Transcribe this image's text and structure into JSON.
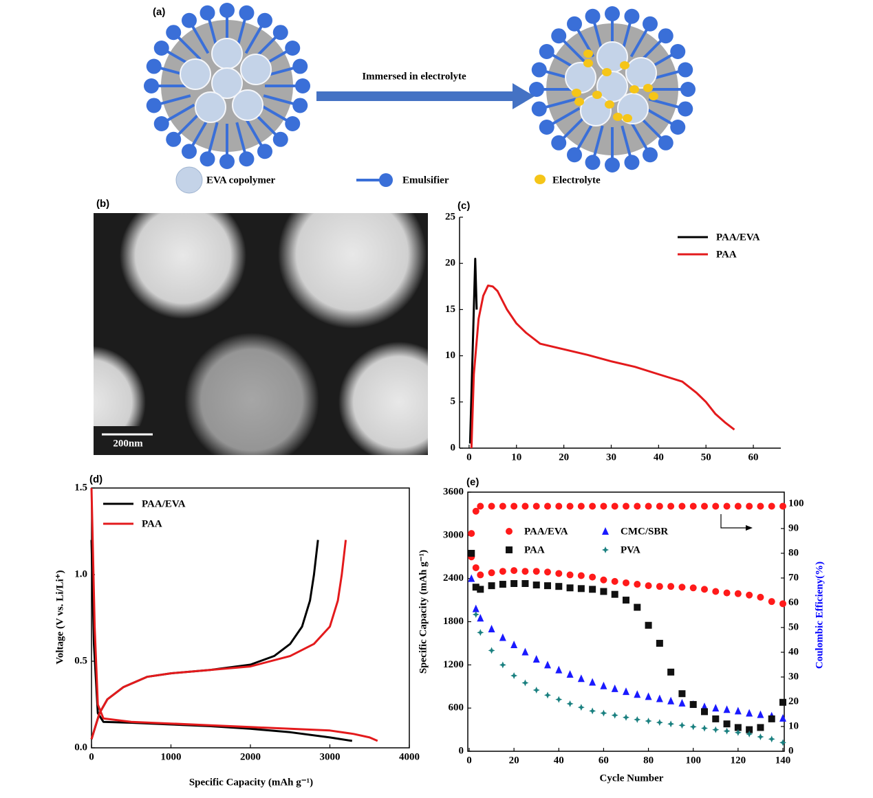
{
  "diagram": {
    "label": "(a)",
    "arrow_text": "Immersed in electrolyte",
    "legend": [
      "EVA copolymer",
      "Emulsifier",
      "Electrolyte"
    ]
  },
  "micrograph": {
    "label": "(b)",
    "scale_bar": "200nm"
  },
  "chart_data": [
    {
      "type": "line",
      "label": "(c)",
      "xlim": [
        -1,
        65.8
      ],
      "ylim": [
        0,
        25
      ],
      "xticks": [
        0,
        10,
        20,
        30,
        40,
        50,
        60
      ],
      "yticks": [
        0,
        5,
        10,
        15,
        20,
        25
      ],
      "legend": "upper right",
      "series": [
        {
          "name": "PAA/EVA",
          "color": "#000000",
          "x": [
            0.2,
            1.3,
            1.6
          ],
          "values": [
            0.5,
            20.5,
            15
          ]
        },
        {
          "name": "PAA",
          "color": "#e31a1c",
          "x": [
            0.5,
            1,
            2,
            3,
            4,
            5,
            6,
            8,
            10,
            12,
            15,
            20,
            25,
            30,
            35,
            40,
            45,
            48,
            50,
            52,
            54,
            56
          ],
          "values": [
            0,
            8,
            14,
            16.5,
            17.6,
            17.5,
            17,
            15,
            13.5,
            12.5,
            11.3,
            10.7,
            10.1,
            9.4,
            8.8,
            8,
            7.2,
            6,
            5,
            3.7,
            2.8,
            2
          ]
        }
      ]
    },
    {
      "type": "line",
      "label": "(d)",
      "x_label": "Specific Capacity (mAh g⁻¹)",
      "y_label": "Voltage (V vs. Li/Li⁺)",
      "xlim": [
        0,
        4000
      ],
      "ylim": [
        0,
        1.5
      ],
      "xticks": [
        0,
        1000,
        2000,
        3000,
        4000
      ],
      "yticks": [
        {
          "value": 0,
          "label": "0.0"
        },
        0.5,
        {
          "value": 1,
          "label": "1.0"
        },
        1.5
      ],
      "legend": "upper left",
      "series": [
        {
          "name": "PAA/EVA",
          "color": "#000000",
          "x": [
            0,
            30,
            80,
            150,
            500,
            1000,
            1500,
            2000,
            2500,
            3000,
            3280,
            null,
            0,
            100,
            200,
            400,
            700,
            1000,
            1500,
            2000,
            2300,
            2500,
            2650,
            2750,
            2800,
            2850
          ],
          "values": [
            1.2,
            0.6,
            0.2,
            0.15,
            0.145,
            0.135,
            0.125,
            0.11,
            0.09,
            0.06,
            0.04,
            null,
            0.05,
            0.2,
            0.28,
            0.35,
            0.41,
            0.43,
            0.45,
            0.48,
            0.53,
            0.6,
            0.7,
            0.85,
            1.0,
            1.2
          ]
        },
        {
          "name": "PAA",
          "color": "#e31a1c",
          "x": [
            0,
            40,
            80,
            150,
            500,
            1000,
            1500,
            2000,
            2500,
            3000,
            3300,
            3500,
            3600,
            null,
            0,
            100,
            200,
            400,
            700,
            1000,
            1500,
            2000,
            2500,
            2800,
            3000,
            3100,
            3150,
            3200
          ],
          "values": [
            1.5,
            0.7,
            0.25,
            0.17,
            0.15,
            0.14,
            0.13,
            0.12,
            0.11,
            0.1,
            0.08,
            0.06,
            0.04,
            null,
            0.05,
            0.2,
            0.28,
            0.35,
            0.41,
            0.43,
            0.45,
            0.47,
            0.53,
            0.6,
            0.7,
            0.85,
            1.0,
            1.2
          ]
        }
      ]
    },
    {
      "type": "scatter",
      "label": "(e)",
      "x_label": "Cycle Number",
      "y_label": "Specific Capacity (mAh g⁻¹)",
      "y2_label": "Coulombic Efficieny(%)",
      "y2_color": "#0000ff",
      "xlim": [
        0,
        140
      ],
      "ylim": [
        0,
        3600
      ],
      "y2lim": [
        0,
        104.7
      ],
      "xticks": [
        0,
        20,
        40,
        60,
        80,
        100,
        120,
        140
      ],
      "yticks": [
        0,
        600,
        1200,
        1800,
        2400,
        3000,
        3600
      ],
      "y2ticks": [
        0,
        10,
        20,
        30,
        40,
        50,
        60,
        70,
        80,
        90,
        100
      ],
      "x": [
        1,
        3,
        5,
        10,
        15,
        20,
        25,
        30,
        35,
        40,
        45,
        50,
        55,
        60,
        65,
        70,
        75,
        80,
        85,
        90,
        95,
        100,
        105,
        110,
        115,
        120,
        125,
        130,
        135,
        140
      ],
      "series": [
        {
          "name": "PAA/EVA",
          "color": "#ff1a1a",
          "marker": "circle",
          "values": [
            2700,
            2550,
            2450,
            2480,
            2500,
            2510,
            2500,
            2500,
            2490,
            2470,
            2450,
            2440,
            2420,
            2380,
            2360,
            2340,
            2320,
            2300,
            2290,
            2290,
            2280,
            2270,
            2250,
            2220,
            2200,
            2190,
            2170,
            2140,
            2080,
            2050
          ]
        },
        {
          "name": "CMC/SBR",
          "color": "#1a1aff",
          "marker": "triangle",
          "values": [
            2400,
            1980,
            1850,
            1700,
            1580,
            1480,
            1380,
            1280,
            1200,
            1130,
            1070,
            1010,
            960,
            910,
            870,
            830,
            790,
            760,
            730,
            700,
            670,
            650,
            620,
            600,
            580,
            560,
            530,
            510,
            490,
            460
          ]
        },
        {
          "name": "PAA",
          "color": "#111111",
          "marker": "square",
          "values": [
            2750,
            2280,
            2250,
            2300,
            2320,
            2330,
            2330,
            2310,
            2300,
            2290,
            2270,
            2260,
            2250,
            2220,
            2180,
            2100,
            2000,
            1750,
            1500,
            1100,
            800,
            650,
            550,
            450,
            380,
            330,
            300,
            330,
            450,
            680
          ]
        },
        {
          "name": "PVA",
          "color": "#1a8080",
          "marker": "star",
          "values": [
            null,
            1900,
            1650,
            1400,
            1200,
            1050,
            950,
            850,
            780,
            720,
            660,
            610,
            560,
            530,
            500,
            470,
            440,
            420,
            400,
            380,
            360,
            340,
            320,
            300,
            280,
            260,
            240,
            200,
            170,
            120
          ]
        },
        {
          "color": "#ff1a1a",
          "marker": "circle",
          "axis": "y2",
          "values": [
            88,
            97,
            99,
            99,
            99,
            99,
            99,
            99,
            99,
            99,
            99,
            99,
            99,
            99,
            99,
            99,
            99,
            99,
            99,
            99,
            99,
            99,
            99,
            99,
            99,
            99,
            99,
            99,
            99,
            99
          ]
        }
      ]
    }
  ]
}
